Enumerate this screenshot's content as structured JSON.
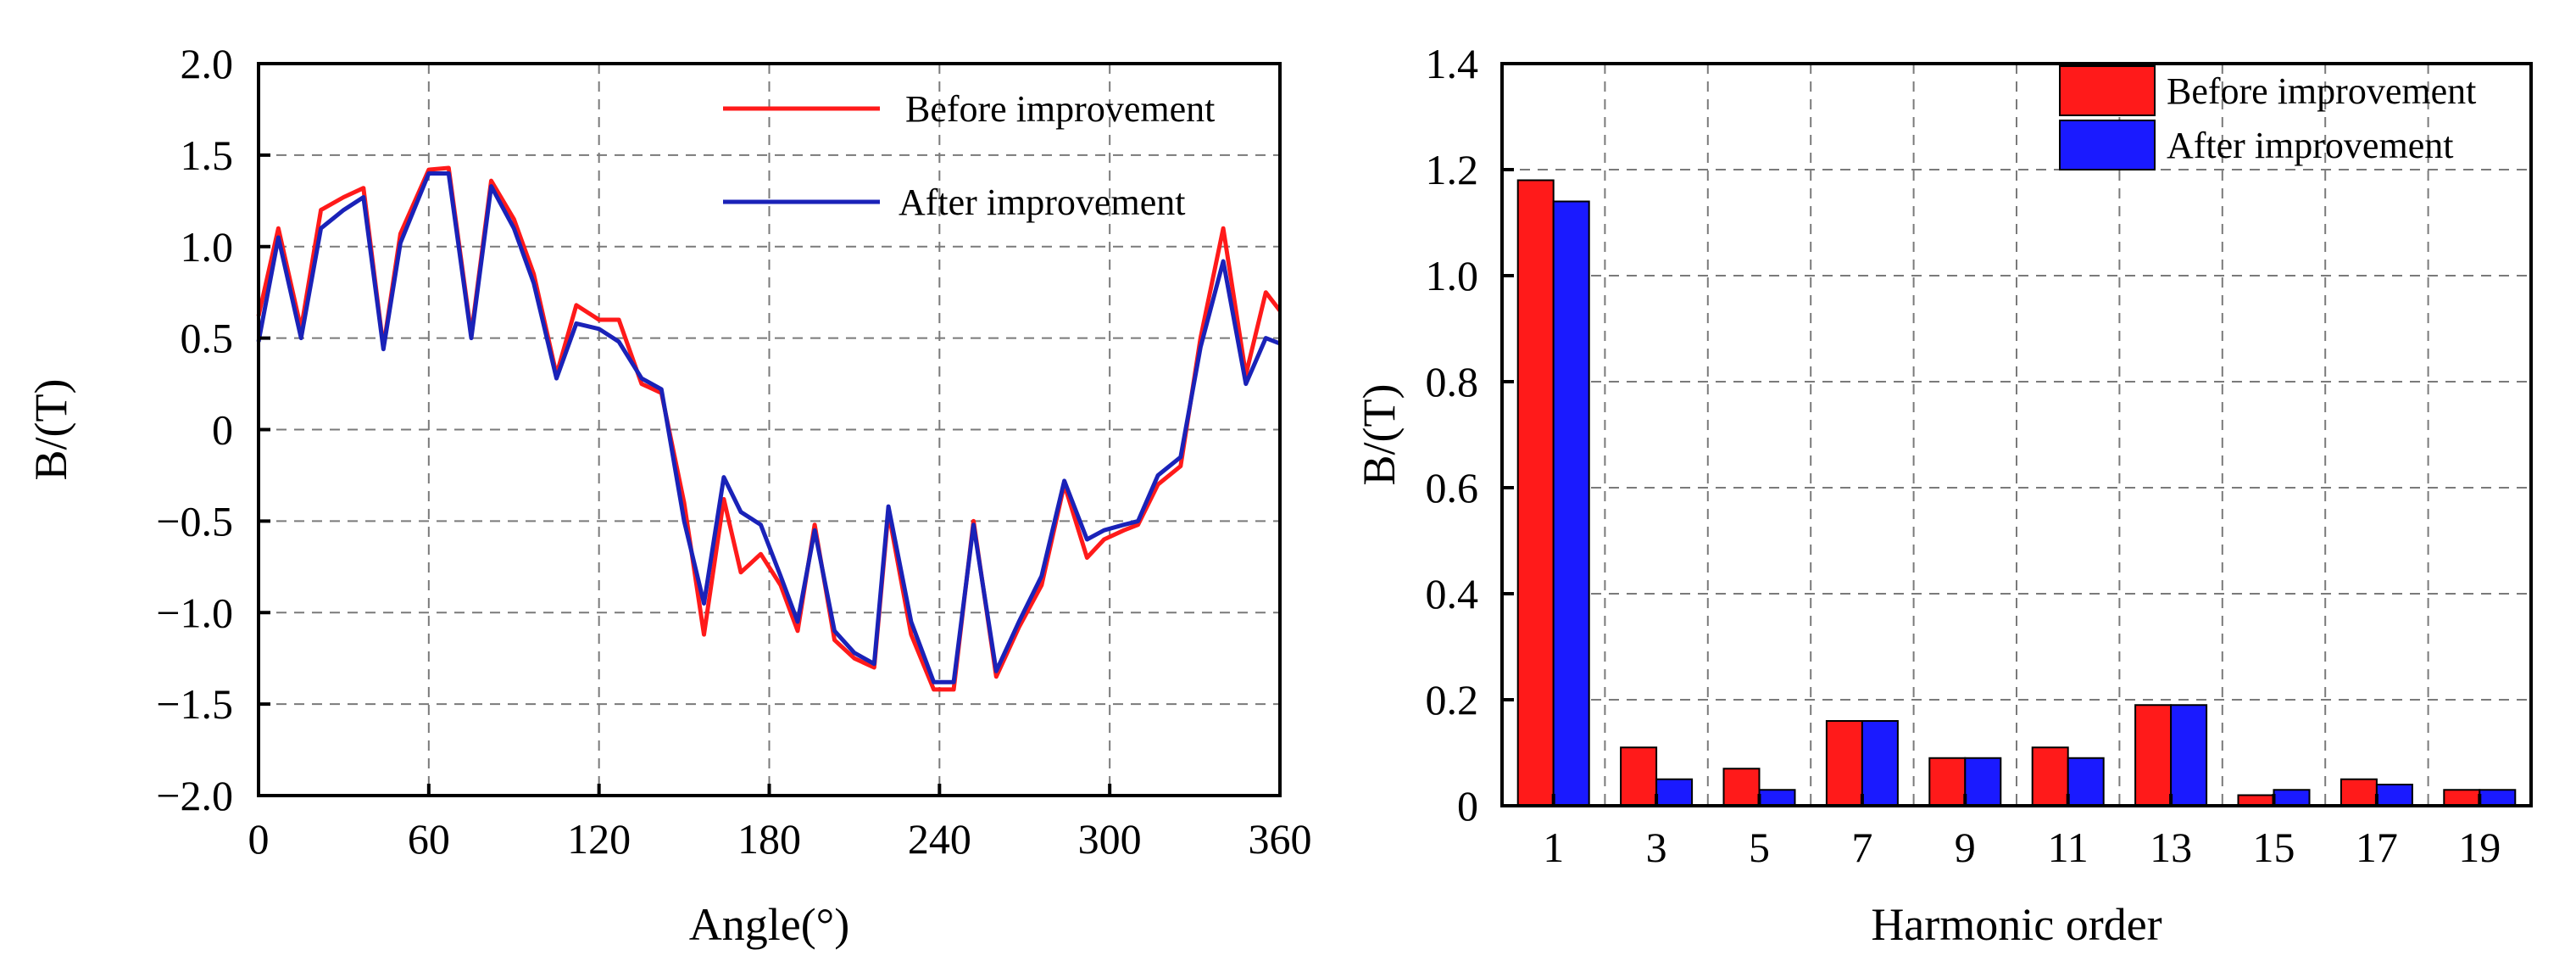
{
  "chart_data": [
    {
      "type": "line",
      "title": "",
      "xlabel": "Angle(°)",
      "ylabel": "B/(T)",
      "xlim": [
        0,
        360
      ],
      "ylim": [
        -2.0,
        2.0
      ],
      "x_ticks": [
        "0",
        "60",
        "120",
        "180",
        "240",
        "300",
        "360"
      ],
      "y_ticks": [
        "2.0",
        "1.5",
        "1.0",
        "0.5",
        "0",
        "−0.5",
        "−1.0",
        "−1.5",
        "−2.0"
      ],
      "grid": true,
      "legend_position": "top-right",
      "series": [
        {
          "name": "Before improvement",
          "color": "#ff1a1a",
          "x": [
            0,
            7,
            15,
            22,
            30,
            37,
            44,
            50,
            60,
            67,
            75,
            82,
            90,
            97,
            105,
            112,
            120,
            127,
            135,
            142,
            150,
            157,
            164,
            170,
            177,
            184,
            190,
            196,
            203,
            210,
            217,
            222,
            230,
            238,
            245,
            252,
            260,
            268,
            276,
            284,
            292,
            298,
            305,
            310,
            317,
            325,
            332,
            340,
            348,
            355,
            360
          ],
          "y": [
            0.62,
            1.1,
            0.55,
            1.2,
            1.27,
            1.32,
            0.45,
            1.07,
            1.42,
            1.43,
            0.52,
            1.36,
            1.15,
            0.85,
            0.3,
            0.68,
            0.6,
            0.6,
            0.25,
            0.2,
            -0.4,
            -1.12,
            -0.38,
            -0.78,
            -0.68,
            -0.85,
            -1.1,
            -0.52,
            -1.15,
            -1.25,
            -1.3,
            -0.45,
            -1.12,
            -1.42,
            -1.42,
            -0.5,
            -1.35,
            -1.08,
            -0.85,
            -0.3,
            -0.7,
            -0.6,
            -0.55,
            -0.52,
            -0.3,
            -0.2,
            0.5,
            1.1,
            0.3,
            0.75,
            0.65
          ]
        },
        {
          "name": "After improvement",
          "color": "#1a22b8",
          "x": [
            0,
            7,
            15,
            22,
            30,
            37,
            44,
            50,
            60,
            67,
            75,
            82,
            90,
            97,
            105,
            112,
            120,
            127,
            135,
            142,
            150,
            157,
            164,
            170,
            177,
            184,
            190,
            196,
            203,
            210,
            217,
            222,
            230,
            238,
            245,
            252,
            260,
            268,
            276,
            284,
            292,
            298,
            305,
            310,
            317,
            325,
            332,
            340,
            348,
            355,
            360
          ],
          "y": [
            0.48,
            1.05,
            0.5,
            1.1,
            1.2,
            1.27,
            0.44,
            1.02,
            1.4,
            1.4,
            0.5,
            1.33,
            1.1,
            0.8,
            0.28,
            0.58,
            0.55,
            0.48,
            0.28,
            0.22,
            -0.5,
            -0.95,
            -0.26,
            -0.45,
            -0.52,
            -0.8,
            -1.05,
            -0.55,
            -1.1,
            -1.22,
            -1.28,
            -0.42,
            -1.05,
            -1.38,
            -1.38,
            -0.52,
            -1.32,
            -1.05,
            -0.8,
            -0.28,
            -0.6,
            -0.55,
            -0.52,
            -0.5,
            -0.25,
            -0.15,
            0.45,
            0.92,
            0.25,
            0.5,
            0.47
          ]
        }
      ]
    },
    {
      "type": "bar",
      "title": "",
      "xlabel": "Harmonic order",
      "ylabel": "B/(T)",
      "ylim": [
        0,
        1.4
      ],
      "y_ticks": [
        "1.4",
        "1.2",
        "1.0",
        "0.8",
        "0.6",
        "0.4",
        "0.2",
        "0"
      ],
      "categories": [
        "1",
        "3",
        "5",
        "7",
        "9",
        "11",
        "13",
        "15",
        "17",
        "19"
      ],
      "grid": true,
      "legend_position": "top-right",
      "series": [
        {
          "name": "Before improvement",
          "color": "#ff1a1a",
          "values": [
            1.18,
            0.11,
            0.07,
            0.16,
            0.09,
            0.11,
            0.19,
            0.02,
            0.05,
            0.03
          ]
        },
        {
          "name": "After improvement",
          "color": "#1a1aff",
          "values": [
            1.14,
            0.05,
            0.03,
            0.16,
            0.09,
            0.09,
            0.19,
            0.03,
            0.04,
            0.03
          ]
        }
      ]
    }
  ]
}
